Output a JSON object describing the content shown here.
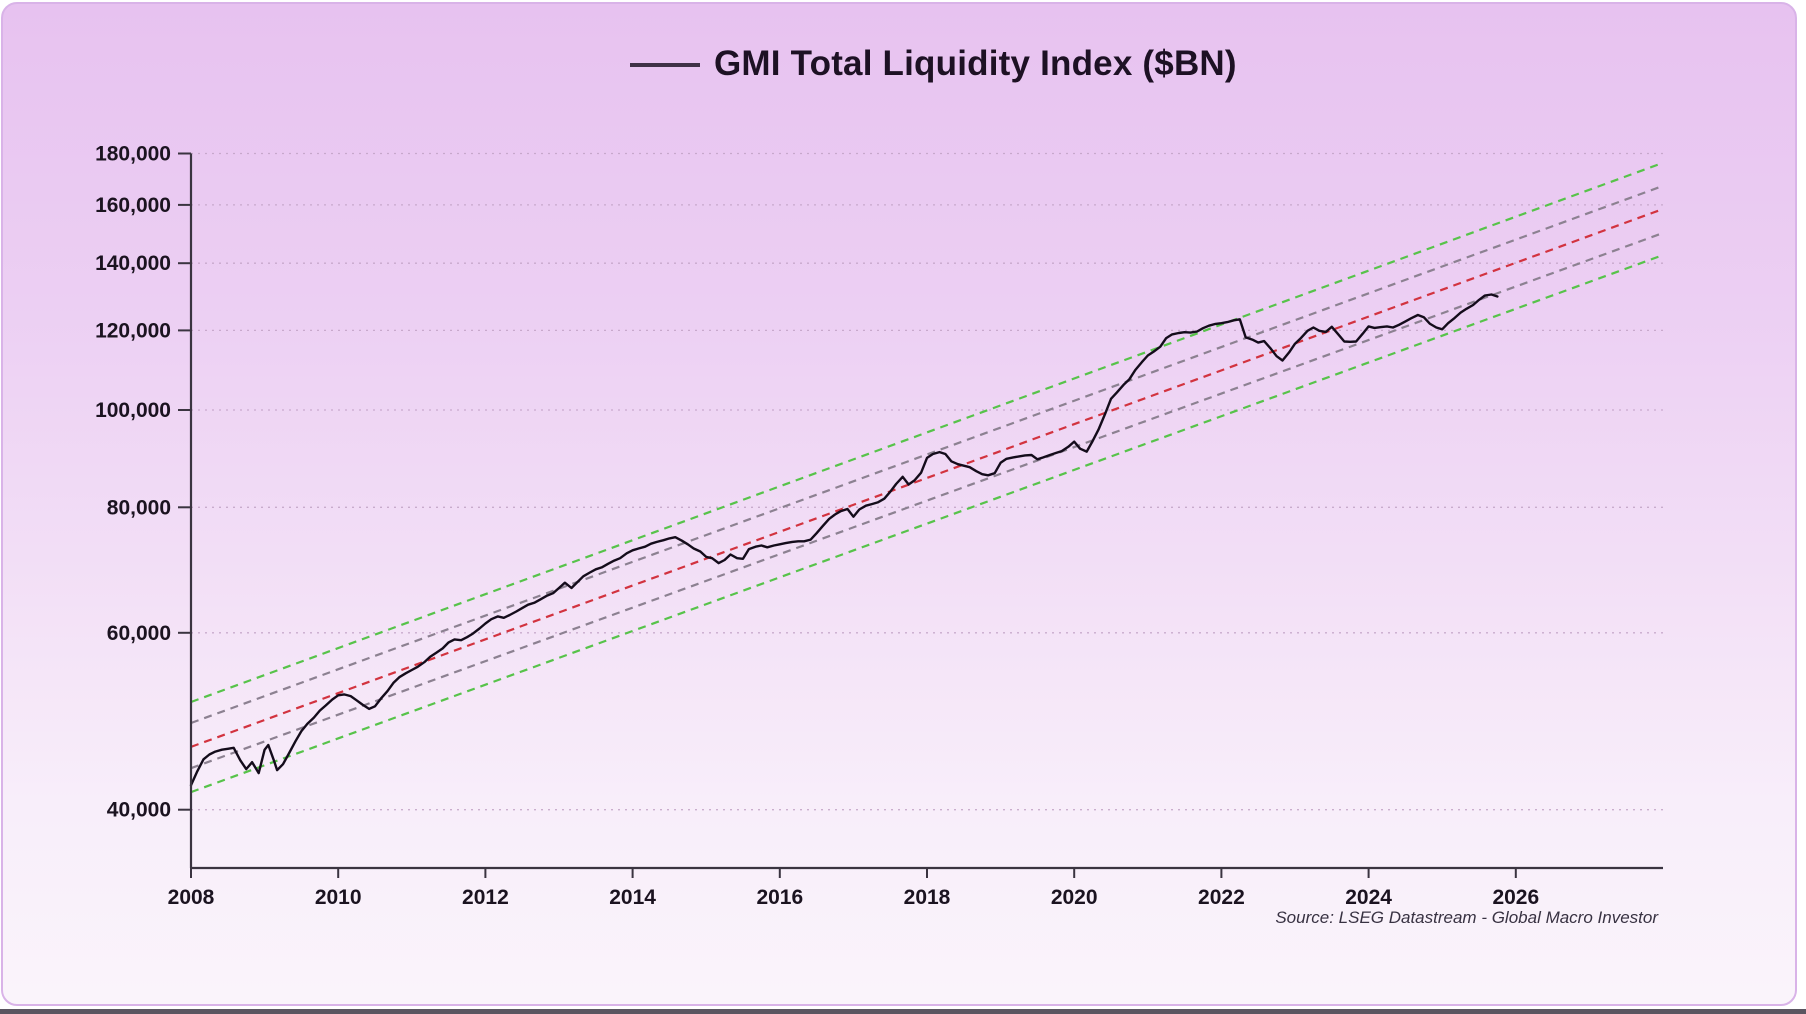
{
  "legend": {
    "label": "GMI Total Liquidity Index ($BN)"
  },
  "source": {
    "text": "Source: LSEG Datastream - Global Macro Investor"
  },
  "colors": {
    "series": "#140c1b",
    "midline": "#d2333f",
    "inner_band": "#8c8191",
    "outer_band": "#57c34a",
    "axis": "#3a3440",
    "grid": "#c2a3c6",
    "tick_label": "#1b1320",
    "panel_border": "#d9b3e8",
    "background_top": "#e7c2f0",
    "background_bottom": "#faf4fb"
  },
  "chart_data": {
    "type": "line",
    "title": "GMI Total Liquidity Index ($BN)",
    "xlabel": "",
    "ylabel": "",
    "y_scale": "log",
    "grid": "horizontal-dotted",
    "legend_position": "top-center",
    "x_domain": [
      2008,
      2028
    ],
    "y_domain": [
      35000,
      180000
    ],
    "x_ticks": [
      2008,
      2010,
      2012,
      2014,
      2016,
      2018,
      2020,
      2022,
      2024,
      2026
    ],
    "y_ticks": [
      40000,
      60000,
      80000,
      100000,
      120000,
      140000,
      160000,
      180000
    ],
    "channel": [
      {
        "name": "upper-outer-band",
        "style": "dashed",
        "color_key": "outer_band",
        "start_year": 2008,
        "start_value": 51200,
        "end_year": 2028,
        "end_value": 176200
      },
      {
        "name": "upper-inner-band",
        "style": "dashed",
        "color_key": "inner_band",
        "start_year": 2008,
        "start_value": 48800,
        "end_year": 2028,
        "end_value": 167100
      },
      {
        "name": "regression-midline",
        "style": "dashed",
        "color_key": "midline",
        "start_year": 2008,
        "start_value": 46200,
        "end_year": 2028,
        "end_value": 158500
      },
      {
        "name": "lower-inner-band",
        "style": "dashed",
        "color_key": "inner_band",
        "start_year": 2008,
        "start_value": 44000,
        "end_year": 2028,
        "end_value": 150000
      },
      {
        "name": "lower-outer-band",
        "style": "dashed",
        "color_key": "outer_band",
        "start_year": 2008,
        "start_value": 41650,
        "end_year": 2028,
        "end_value": 142600
      }
    ],
    "series": [
      {
        "name": "GMI Total Liquidity Index ($BN)",
        "color_key": "series",
        "points": [
          [
            2008.0,
            42300
          ],
          [
            2008.08,
            43600
          ],
          [
            2008.17,
            44900
          ],
          [
            2008.25,
            45400
          ],
          [
            2008.33,
            45700
          ],
          [
            2008.42,
            45900
          ],
          [
            2008.5,
            46000
          ],
          [
            2008.58,
            46100
          ],
          [
            2008.67,
            44800
          ],
          [
            2008.75,
            43900
          ],
          [
            2008.83,
            44600
          ],
          [
            2008.92,
            43500
          ],
          [
            2009.0,
            45900
          ],
          [
            2009.05,
            46400
          ],
          [
            2009.13,
            44700
          ],
          [
            2009.17,
            43800
          ],
          [
            2009.25,
            44400
          ],
          [
            2009.33,
            45500
          ],
          [
            2009.42,
            46800
          ],
          [
            2009.5,
            47900
          ],
          [
            2009.58,
            48700
          ],
          [
            2009.67,
            49400
          ],
          [
            2009.75,
            50200
          ],
          [
            2009.83,
            50800
          ],
          [
            2009.92,
            51500
          ],
          [
            2010.0,
            52000
          ],
          [
            2010.08,
            52100
          ],
          [
            2010.17,
            51900
          ],
          [
            2010.25,
            51400
          ],
          [
            2010.33,
            50900
          ],
          [
            2010.42,
            50400
          ],
          [
            2010.5,
            50700
          ],
          [
            2010.58,
            51600
          ],
          [
            2010.67,
            52500
          ],
          [
            2010.75,
            53500
          ],
          [
            2010.83,
            54200
          ],
          [
            2010.92,
            54700
          ],
          [
            2011.0,
            55100
          ],
          [
            2011.08,
            55500
          ],
          [
            2011.17,
            56100
          ],
          [
            2011.25,
            56800
          ],
          [
            2011.33,
            57300
          ],
          [
            2011.42,
            57900
          ],
          [
            2011.5,
            58700
          ],
          [
            2011.58,
            59100
          ],
          [
            2011.67,
            59000
          ],
          [
            2011.75,
            59400
          ],
          [
            2011.83,
            59900
          ],
          [
            2011.92,
            60600
          ],
          [
            2012.0,
            61300
          ],
          [
            2012.08,
            61900
          ],
          [
            2012.17,
            62300
          ],
          [
            2012.25,
            62100
          ],
          [
            2012.33,
            62500
          ],
          [
            2012.42,
            63000
          ],
          [
            2012.5,
            63500
          ],
          [
            2012.58,
            64000
          ],
          [
            2012.67,
            64300
          ],
          [
            2012.75,
            64800
          ],
          [
            2012.83,
            65300
          ],
          [
            2012.92,
            65700
          ],
          [
            2013.0,
            66500
          ],
          [
            2013.08,
            67300
          ],
          [
            2013.17,
            66500
          ],
          [
            2013.25,
            67400
          ],
          [
            2013.33,
            68300
          ],
          [
            2013.42,
            68900
          ],
          [
            2013.5,
            69400
          ],
          [
            2013.58,
            69700
          ],
          [
            2013.67,
            70300
          ],
          [
            2013.75,
            70800
          ],
          [
            2013.83,
            71200
          ],
          [
            2013.92,
            72000
          ],
          [
            2014.0,
            72500
          ],
          [
            2014.08,
            72800
          ],
          [
            2014.17,
            73100
          ],
          [
            2014.25,
            73600
          ],
          [
            2014.33,
            73900
          ],
          [
            2014.42,
            74200
          ],
          [
            2014.5,
            74500
          ],
          [
            2014.58,
            74700
          ],
          [
            2014.67,
            74100
          ],
          [
            2014.75,
            73500
          ],
          [
            2014.83,
            72800
          ],
          [
            2014.92,
            72300
          ],
          [
            2015.0,
            71400
          ],
          [
            2015.08,
            71200
          ],
          [
            2015.17,
            70400
          ],
          [
            2015.25,
            70900
          ],
          [
            2015.33,
            71800
          ],
          [
            2015.42,
            71200
          ],
          [
            2015.5,
            71100
          ],
          [
            2015.58,
            72700
          ],
          [
            2015.67,
            73100
          ],
          [
            2015.75,
            73300
          ],
          [
            2015.83,
            73000
          ],
          [
            2015.92,
            73300
          ],
          [
            2016.0,
            73500
          ],
          [
            2016.08,
            73700
          ],
          [
            2016.17,
            73900
          ],
          [
            2016.25,
            74000
          ],
          [
            2016.33,
            74000
          ],
          [
            2016.42,
            74300
          ],
          [
            2016.5,
            75400
          ],
          [
            2016.58,
            76600
          ],
          [
            2016.67,
            77900
          ],
          [
            2016.75,
            78700
          ],
          [
            2016.83,
            79300
          ],
          [
            2016.92,
            79700
          ],
          [
            2017.0,
            78300
          ],
          [
            2017.08,
            79600
          ],
          [
            2017.17,
            80300
          ],
          [
            2017.25,
            80600
          ],
          [
            2017.33,
            80900
          ],
          [
            2017.42,
            81600
          ],
          [
            2017.5,
            82900
          ],
          [
            2017.58,
            84400
          ],
          [
            2017.67,
            85800
          ],
          [
            2017.75,
            84300
          ],
          [
            2017.83,
            85100
          ],
          [
            2017.92,
            86600
          ],
          [
            2018.0,
            89600
          ],
          [
            2018.08,
            90400
          ],
          [
            2018.17,
            90800
          ],
          [
            2018.25,
            90400
          ],
          [
            2018.33,
            88900
          ],
          [
            2018.42,
            88300
          ],
          [
            2018.5,
            88000
          ],
          [
            2018.58,
            87700
          ],
          [
            2018.67,
            86900
          ],
          [
            2018.75,
            86300
          ],
          [
            2018.83,
            86100
          ],
          [
            2018.92,
            86500
          ],
          [
            2019.0,
            88600
          ],
          [
            2019.08,
            89400
          ],
          [
            2019.17,
            89700
          ],
          [
            2019.25,
            89900
          ],
          [
            2019.33,
            90100
          ],
          [
            2019.42,
            90200
          ],
          [
            2019.5,
            89300
          ],
          [
            2019.58,
            89700
          ],
          [
            2019.67,
            90200
          ],
          [
            2019.75,
            90600
          ],
          [
            2019.83,
            91000
          ],
          [
            2019.92,
            91900
          ],
          [
            2020.0,
            93000
          ],
          [
            2020.08,
            91500
          ],
          [
            2020.17,
            90900
          ],
          [
            2020.25,
            93100
          ],
          [
            2020.33,
            95600
          ],
          [
            2020.42,
            99100
          ],
          [
            2020.5,
            102600
          ],
          [
            2020.58,
            104100
          ],
          [
            2020.67,
            105900
          ],
          [
            2020.75,
            107300
          ],
          [
            2020.83,
            109600
          ],
          [
            2020.92,
            111600
          ],
          [
            2021.0,
            113300
          ],
          [
            2021.08,
            114300
          ],
          [
            2021.17,
            115600
          ],
          [
            2021.25,
            117900
          ],
          [
            2021.33,
            118900
          ],
          [
            2021.42,
            119300
          ],
          [
            2021.5,
            119500
          ],
          [
            2021.58,
            119400
          ],
          [
            2021.67,
            119700
          ],
          [
            2021.75,
            120600
          ],
          [
            2021.83,
            121300
          ],
          [
            2021.92,
            121800
          ],
          [
            2022.0,
            122000
          ],
          [
            2022.08,
            122300
          ],
          [
            2022.17,
            122800
          ],
          [
            2022.25,
            123100
          ],
          [
            2022.33,
            118100
          ],
          [
            2022.42,
            117500
          ],
          [
            2022.5,
            116700
          ],
          [
            2022.58,
            117100
          ],
          [
            2022.67,
            115100
          ],
          [
            2022.75,
            113100
          ],
          [
            2022.83,
            112000
          ],
          [
            2022.92,
            114100
          ],
          [
            2023.0,
            116400
          ],
          [
            2023.08,
            117900
          ],
          [
            2023.17,
            119900
          ],
          [
            2023.25,
            120800
          ],
          [
            2023.33,
            119900
          ],
          [
            2023.42,
            119600
          ],
          [
            2023.5,
            121000
          ],
          [
            2023.58,
            119100
          ],
          [
            2023.67,
            117000
          ],
          [
            2023.75,
            116900
          ],
          [
            2023.83,
            117000
          ],
          [
            2023.92,
            119100
          ],
          [
            2024.0,
            121100
          ],
          [
            2024.08,
            120700
          ],
          [
            2024.17,
            120900
          ],
          [
            2024.25,
            121100
          ],
          [
            2024.33,
            120800
          ],
          [
            2024.42,
            121600
          ],
          [
            2024.5,
            122500
          ],
          [
            2024.58,
            123400
          ],
          [
            2024.67,
            124300
          ],
          [
            2024.75,
            123700
          ],
          [
            2024.83,
            121900
          ],
          [
            2024.92,
            120800
          ],
          [
            2025.0,
            120300
          ],
          [
            2025.08,
            122000
          ],
          [
            2025.17,
            123500
          ],
          [
            2025.25,
            125000
          ],
          [
            2025.33,
            126100
          ],
          [
            2025.42,
            127200
          ],
          [
            2025.5,
            128700
          ],
          [
            2025.58,
            130000
          ],
          [
            2025.67,
            130300
          ],
          [
            2025.75,
            129700
          ]
        ]
      }
    ]
  }
}
